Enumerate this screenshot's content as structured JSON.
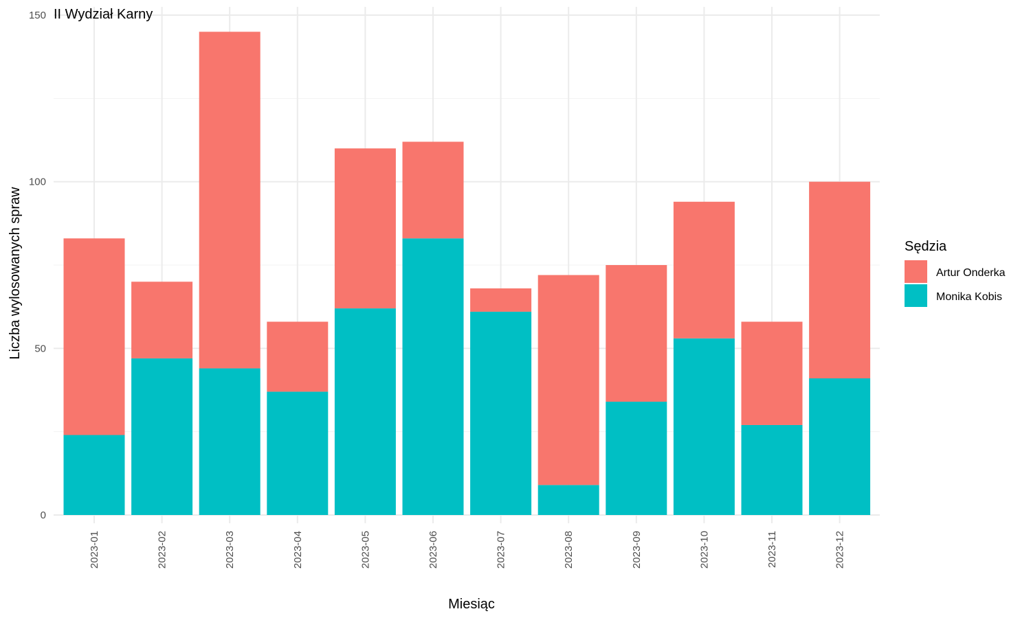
{
  "chart_data": {
    "type": "bar",
    "stacked": true,
    "title": "II Wydział Karny",
    "xlabel": "Miesiąc",
    "ylabel": "Liczba wylosowanych spraw",
    "ylim": [
      0,
      150
    ],
    "yticks": [
      0,
      50,
      100,
      150
    ],
    "grid": true,
    "legend_placement": "right",
    "legend_title": "Sędzia",
    "categories": [
      "2023-01",
      "2023-02",
      "2023-03",
      "2023-04",
      "2023-05",
      "2023-06",
      "2023-07",
      "2023-08",
      "2023-09",
      "2023-10",
      "2023-11",
      "2023-12"
    ],
    "series": [
      {
        "name": "Monika Kobis",
        "color": "#00BFC4",
        "values": [
          24,
          47,
          44,
          37,
          62,
          83,
          61,
          9,
          34,
          53,
          27,
          41
        ]
      },
      {
        "name": "Artur Onderka",
        "color": "#F8766D",
        "values": [
          59,
          23,
          101,
          21,
          48,
          29,
          7,
          63,
          41,
          41,
          31,
          59
        ]
      }
    ],
    "legend_order": [
      "Artur Onderka",
      "Monika Kobis"
    ]
  }
}
